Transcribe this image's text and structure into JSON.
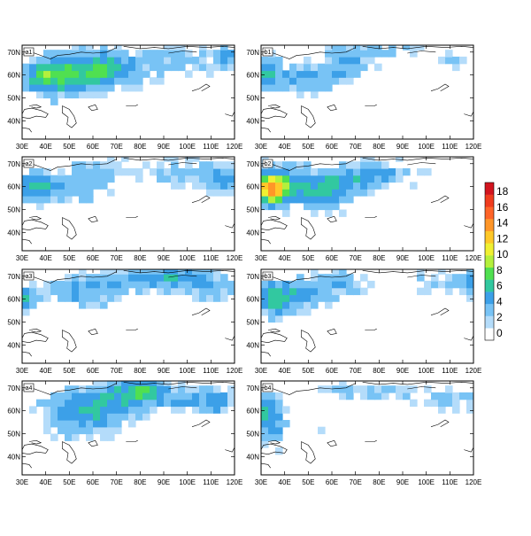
{
  "figure": {
    "panels": [
      {
        "label": "a1",
        "seed": 11,
        "blobs": [
          [
            55,
            62,
            18,
            8,
            4.2
          ],
          [
            45,
            58,
            12,
            7,
            3.5
          ],
          [
            68,
            63,
            12,
            7,
            3.0
          ],
          [
            95,
            66,
            16,
            6,
            2.2
          ],
          [
            117,
            68,
            5,
            5,
            3.5
          ],
          [
            38,
            60,
            6,
            6,
            3.2
          ]
        ]
      },
      {
        "label": "b1",
        "seed": 23,
        "blobs": [
          [
            32,
            60,
            7,
            7,
            4.5
          ],
          [
            48,
            58,
            10,
            6,
            2.8
          ],
          [
            60,
            60,
            8,
            5,
            2.2
          ],
          [
            68,
            66,
            8,
            6,
            2.5
          ],
          [
            75,
            71,
            20,
            4,
            1.8
          ],
          [
            110,
            66,
            5,
            4,
            1.4
          ]
        ]
      },
      {
        "label": "a2",
        "seed": 37,
        "blobs": [
          [
            35,
            60,
            8,
            7,
            4.0
          ],
          [
            50,
            60,
            14,
            6,
            2.7
          ],
          [
            100,
            66,
            20,
            6,
            2.0
          ],
          [
            116,
            62,
            6,
            6,
            3.0
          ],
          [
            62,
            68,
            10,
            4,
            2.2
          ]
        ]
      },
      {
        "label": "b2",
        "seed": 41,
        "blobs": [
          [
            34,
            59,
            6,
            6,
            11.5
          ],
          [
            55,
            58,
            12,
            7,
            4.8
          ],
          [
            70,
            63,
            14,
            6,
            2.8
          ],
          [
            82,
            66,
            14,
            5,
            2.2
          ],
          [
            40,
            62,
            10,
            8,
            3.5
          ]
        ]
      },
      {
        "label": "a3",
        "seed": 53,
        "blobs": [
          [
            30,
            60,
            6,
            6,
            4.5
          ],
          [
            55,
            63,
            14,
            6,
            3.0
          ],
          [
            95,
            70,
            15,
            4,
            4.5
          ],
          [
            75,
            68,
            20,
            5,
            2.2
          ],
          [
            110,
            64,
            10,
            5,
            2.2
          ]
        ]
      },
      {
        "label": "b3",
        "seed": 67,
        "blobs": [
          [
            36,
            60,
            8,
            7,
            5.5
          ],
          [
            50,
            62,
            14,
            6,
            2.6
          ],
          [
            62,
            68,
            14,
            5,
            2.0
          ],
          [
            105,
            68,
            14,
            5,
            1.6
          ],
          [
            118,
            67,
            4,
            5,
            3.2
          ]
        ]
      },
      {
        "label": "a4",
        "seed": 79,
        "blobs": [
          [
            65,
            63,
            14,
            8,
            4.2
          ],
          [
            80,
            69,
            10,
            5,
            5.5
          ],
          [
            50,
            60,
            12,
            7,
            2.8
          ],
          [
            100,
            65,
            18,
            6,
            2.5
          ],
          [
            112,
            64,
            6,
            5,
            2.5
          ],
          [
            55,
            53,
            10,
            5,
            1.8
          ]
        ]
      },
      {
        "label": "b4",
        "seed": 83,
        "blobs": [
          [
            32,
            60,
            6,
            6,
            5.0
          ],
          [
            36,
            52,
            6,
            7,
            2.8
          ],
          [
            75,
            68,
            18,
            4,
            2.0
          ],
          [
            110,
            65,
            12,
            5,
            2.2
          ],
          [
            56,
            50,
            2,
            2,
            1.4
          ]
        ]
      }
    ],
    "x_ticks": [
      "30E",
      "40E",
      "50E",
      "60E",
      "70E",
      "80E",
      "90E",
      "100E",
      "110E",
      "120E"
    ],
    "y_ticks": [
      "40N",
      "50N",
      "60N",
      "70N"
    ]
  },
  "colorbar": {
    "labels": [
      "0",
      "2",
      "4",
      "6",
      "8",
      "10",
      "12",
      "14",
      "16",
      "18"
    ],
    "colors": [
      "#ffffff",
      "#b4dcfa",
      "#78c3f5",
      "#3ca0e8",
      "#32c8a0",
      "#50e050",
      "#b4f03c",
      "#f0f032",
      "#ffc828",
      "#ff9628",
      "#ff6428",
      "#f03c1e",
      "#d2141e"
    ]
  }
}
